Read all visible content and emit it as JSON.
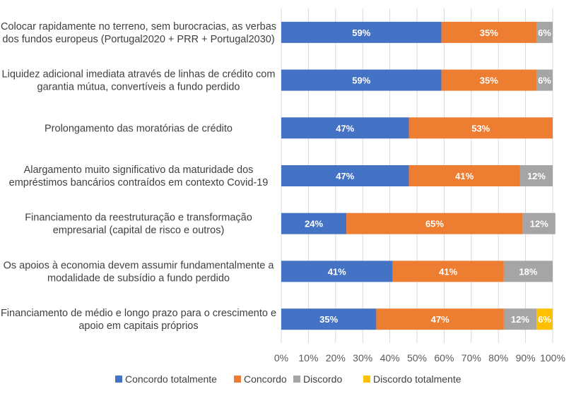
{
  "chart_data": {
    "type": "bar",
    "orientation": "horizontal",
    "stacked": true,
    "categories": [
      [
        "Colocar rapidamente no terreno, sem burocracias, as verbas",
        "dos fundos europeus (Portugal2020 + PRR + Portugal2030)"
      ],
      [
        "Liquidez adicional imediata através de linhas de crédito com",
        "garantia mútua, convertíveis a fundo perdido"
      ],
      [
        "Prolongamento das moratórias de crédito"
      ],
      [
        "Alargamento muito significativo da maturidade dos",
        "empréstimos bancários contraídos em contexto Covid-19"
      ],
      [
        "Financiamento da reestruturação e transformação",
        "empresarial (capital de risco e outros)"
      ],
      [
        "Os apoios à economia devem assumir fundamentalmente a",
        "modalidade de subsídio a fundo perdido"
      ],
      [
        "Financiamento de médio e longo prazo para o crescimento e",
        "apoio em capitais próprios"
      ]
    ],
    "series": [
      {
        "name": "Concordo totalmente",
        "color": "#4472C4",
        "values": [
          59,
          59,
          47,
          47,
          24,
          41,
          35
        ],
        "labels": [
          "59%",
          "59%",
          "47%",
          "47%",
          "24%",
          "41%",
          "35%"
        ]
      },
      {
        "name": "Concordo",
        "color": "#ED7D31",
        "values": [
          35,
          35,
          53,
          41,
          65,
          41,
          47
        ],
        "labels": [
          "35%",
          "35%",
          "53%",
          "41%",
          "65%",
          "41%",
          "47%"
        ]
      },
      {
        "name": "Discordo",
        "color": "#A5A5A5",
        "values": [
          6,
          6,
          0,
          12,
          12,
          18,
          12
        ],
        "labels": [
          "6%",
          "6%",
          "",
          "12%",
          "12%",
          "18%",
          "12%"
        ]
      },
      {
        "name": "Discordo totalmente",
        "color": "#FFC000",
        "values": [
          0,
          0,
          0,
          0,
          0,
          0,
          6
        ],
        "labels": [
          "",
          "",
          "",
          "",
          "",
          "",
          "6%"
        ]
      }
    ],
    "xlim": [
      0,
      100
    ],
    "x_ticks": [
      "0%",
      "10%",
      "20%",
      "30%",
      "40%",
      "50%",
      "60%",
      "70%",
      "80%",
      "90%",
      "100%"
    ],
    "grid": true,
    "legend": "bottom",
    "title": "",
    "xlabel": "",
    "ylabel": ""
  }
}
